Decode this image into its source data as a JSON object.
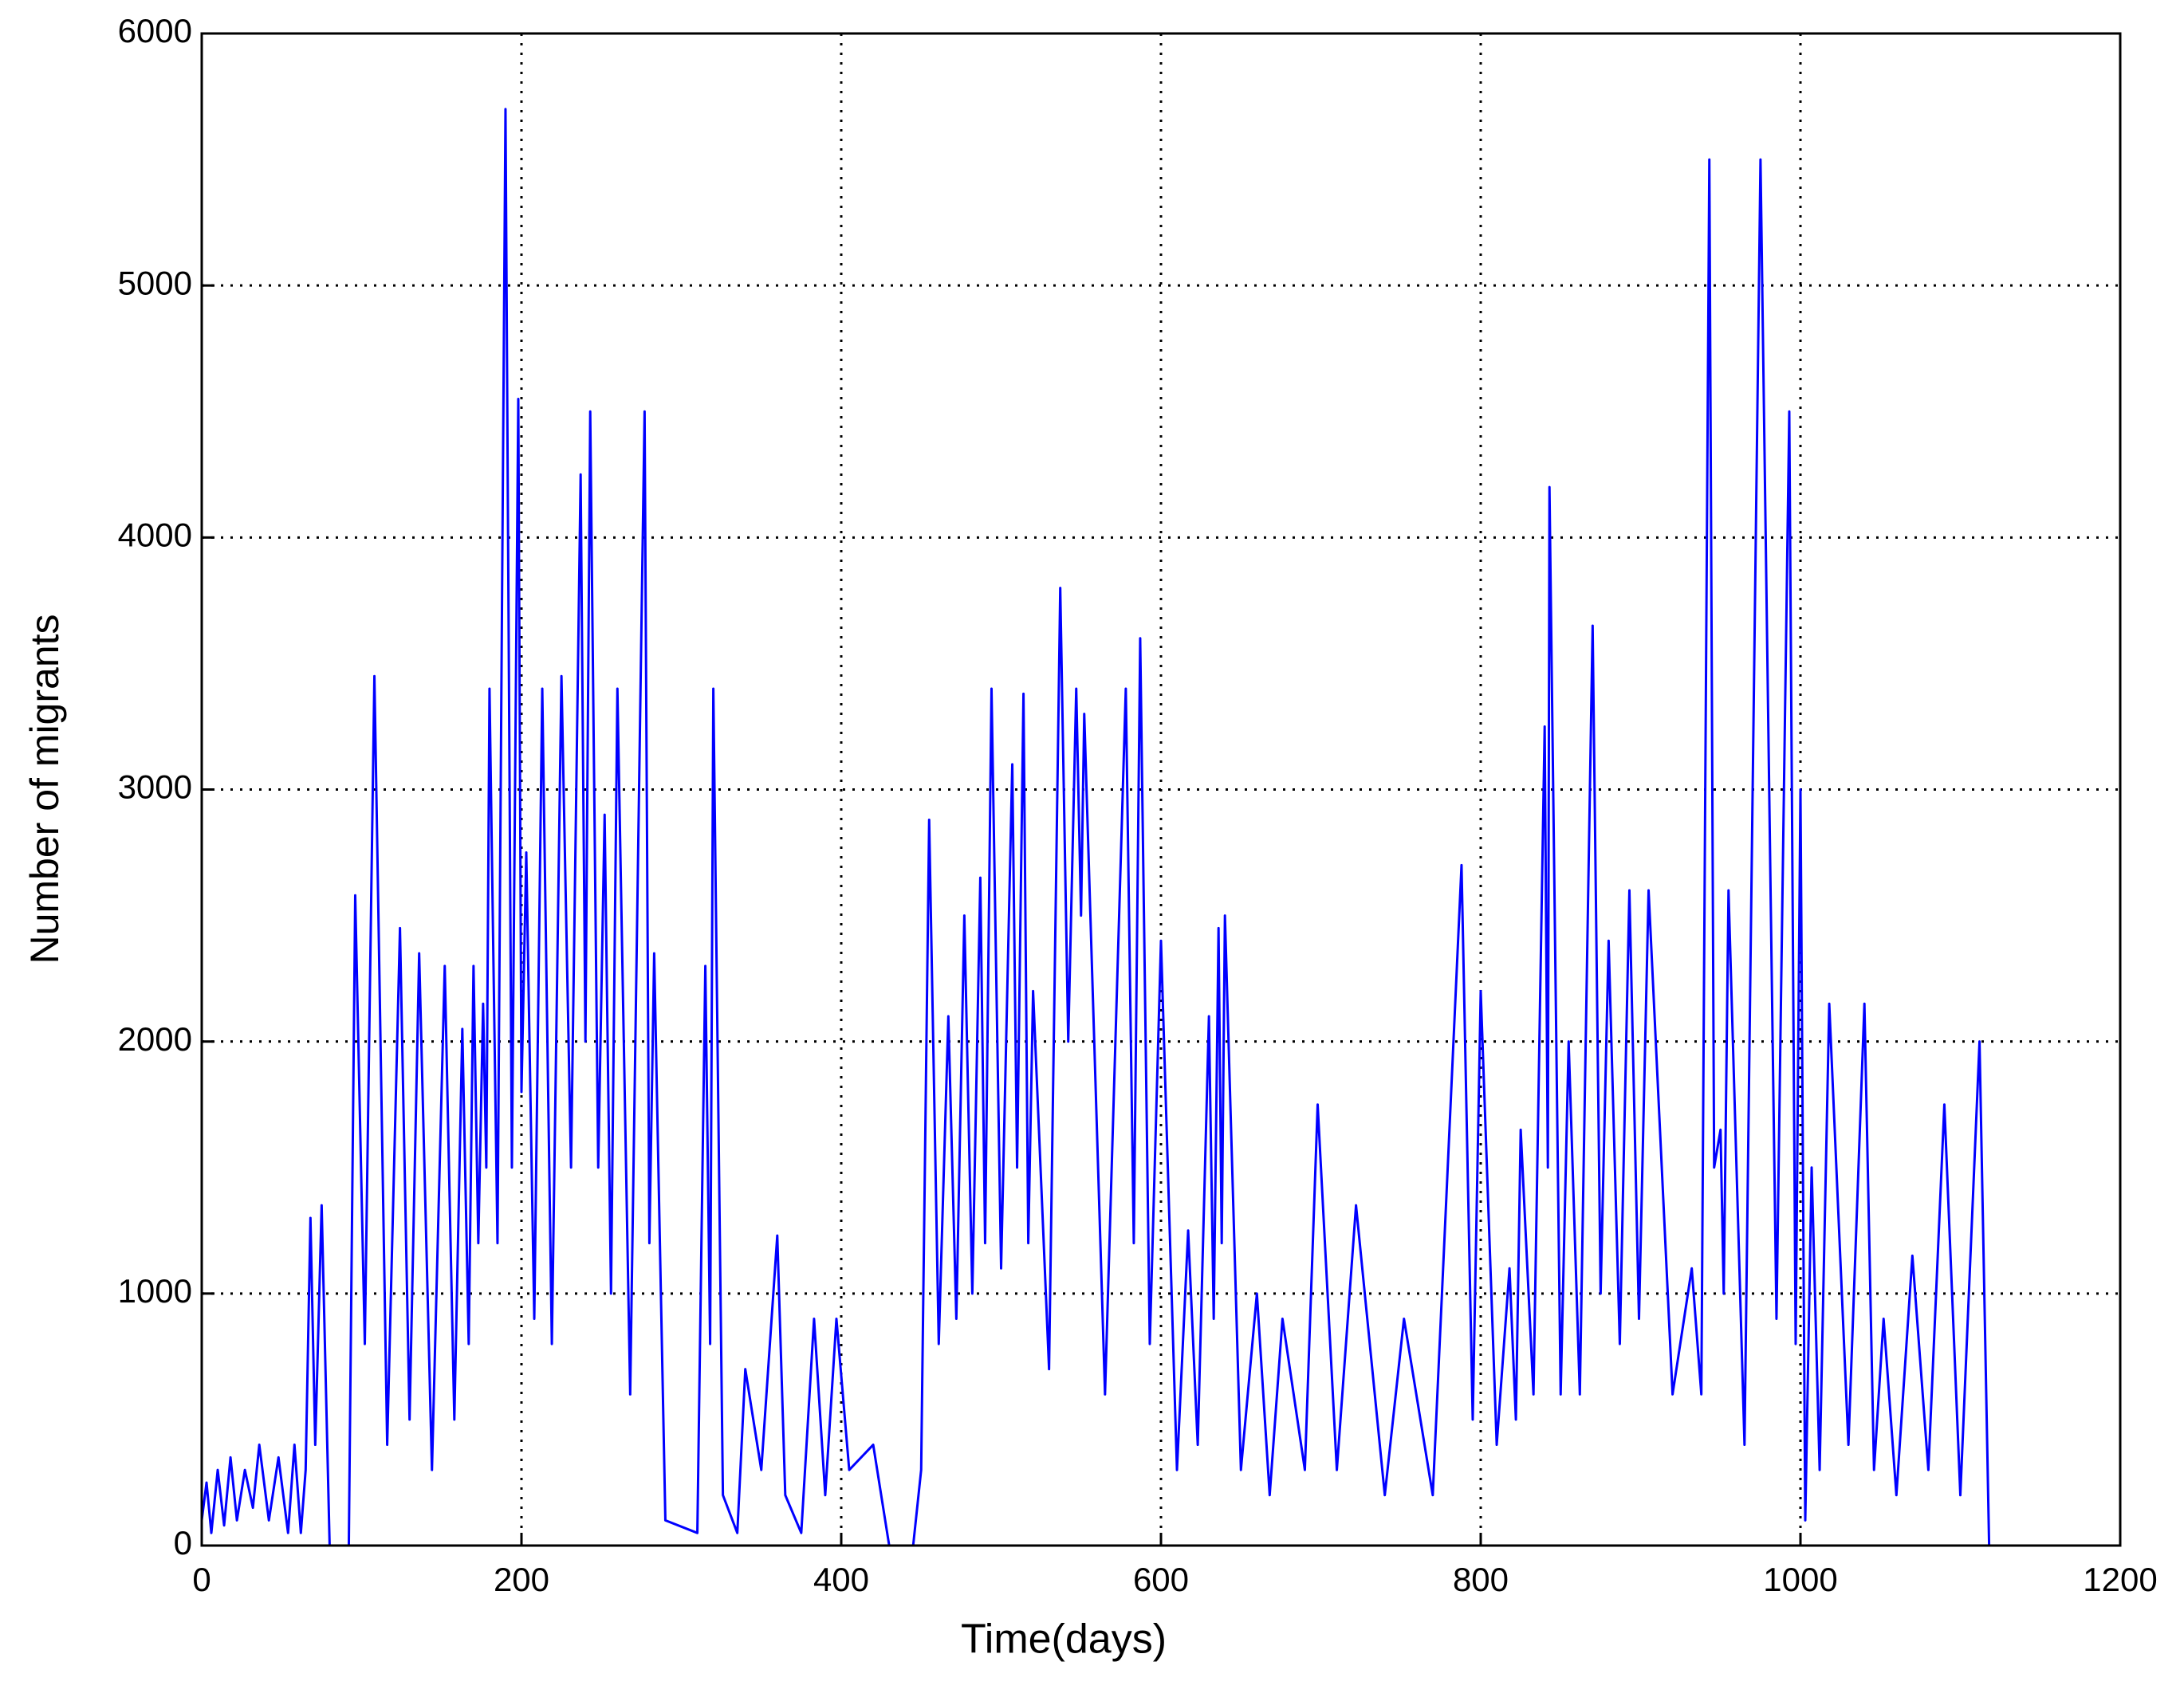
{
  "chart_data": {
    "type": "line",
    "xlabel": "Time(days)",
    "ylabel": "Number of migrants",
    "xlim": [
      0,
      1200
    ],
    "ylim": [
      0,
      6000
    ],
    "xticks": [
      0,
      200,
      400,
      600,
      800,
      1000,
      1200
    ],
    "yticks": [
      0,
      1000,
      2000,
      3000,
      4000,
      5000,
      6000
    ],
    "grid": true,
    "x": [
      0,
      3,
      6,
      10,
      14,
      18,
      22,
      27,
      32,
      36,
      42,
      48,
      54,
      58,
      62,
      65,
      68,
      71,
      75,
      80,
      92,
      96,
      102,
      108,
      110,
      116,
      124,
      130,
      136,
      144,
      152,
      158,
      163,
      167,
      170,
      173,
      176,
      178,
      180,
      185,
      190,
      194,
      198,
      200,
      203,
      208,
      213,
      219,
      225,
      231,
      237,
      240,
      243,
      248,
      252,
      256,
      260,
      268,
      277,
      280,
      283,
      290,
      310,
      315,
      318,
      320,
      326,
      335,
      340,
      350,
      360,
      365,
      375,
      383,
      390,
      397,
      405,
      420,
      430,
      445,
      450,
      455,
      461,
      467,
      472,
      477,
      482,
      487,
      490,
      494,
      500,
      507,
      510,
      514,
      517,
      520,
      530,
      537,
      542,
      547,
      550,
      552,
      565,
      578,
      583,
      587,
      593,
      600,
      610,
      617,
      623,
      630,
      633,
      636,
      638,
      640,
      650,
      660,
      668,
      676,
      690,
      698,
      710,
      722,
      740,
      752,
      770,
      788,
      795,
      800,
      810,
      818,
      822,
      825,
      833,
      840,
      842,
      843,
      850,
      855,
      862,
      870,
      875,
      880,
      887,
      893,
      899,
      905,
      920,
      932,
      938,
      943,
      946,
      950,
      952,
      955,
      965,
      975,
      985,
      993,
      997,
      1000,
      1003,
      1007,
      1012,
      1018,
      1030,
      1040,
      1046,
      1052,
      1060,
      1070,
      1080,
      1090,
      1100,
      1112,
      1118
    ],
    "series": [
      {
        "color": "#0000ff",
        "values": [
          100,
          250,
          50,
          300,
          80,
          350,
          100,
          300,
          150,
          400,
          100,
          350,
          50,
          400,
          50,
          300,
          1300,
          400,
          1350,
          0,
          0,
          2580,
          800,
          3450,
          2700,
          400,
          2450,
          500,
          2350,
          300,
          2300,
          500,
          2050,
          800,
          2300,
          1200,
          2150,
          1500,
          3400,
          1200,
          5700,
          1500,
          4550,
          1800,
          2750,
          900,
          3400,
          800,
          3450,
          1500,
          4250,
          2000,
          4500,
          1500,
          2900,
          1000,
          3400,
          600,
          4500,
          1200,
          2350,
          100,
          50,
          2300,
          800,
          3400,
          200,
          50,
          700,
          300,
          1230,
          200,
          50,
          900,
          200,
          900,
          300,
          400,
          0,
          0,
          300,
          2880,
          800,
          2100,
          900,
          2500,
          1000,
          2650,
          1200,
          3400,
          1100,
          3100,
          1500,
          3380,
          1200,
          2200,
          700,
          3800,
          2000,
          3400,
          2500,
          3300,
          600,
          3400,
          1200,
          3600,
          800,
          2400,
          300,
          1250,
          400,
          2100,
          900,
          2450,
          1200,
          2500,
          300,
          1000,
          200,
          900,
          300,
          1750,
          300,
          1350,
          200,
          900,
          200,
          2700,
          500,
          2200,
          400,
          1100,
          500,
          1650,
          600,
          3250,
          1500,
          4200,
          600,
          2000,
          600,
          3650,
          1000,
          2400,
          800,
          2600,
          900,
          2600,
          600,
          1100,
          600,
          5500,
          1500,
          1650,
          1000,
          2600,
          400,
          5500,
          900,
          4500,
          800,
          3000,
          100,
          1500,
          300,
          2150,
          400,
          2150,
          300,
          900,
          200,
          1150,
          300,
          1750,
          200,
          2000,
          0
        ]
      }
    ]
  }
}
